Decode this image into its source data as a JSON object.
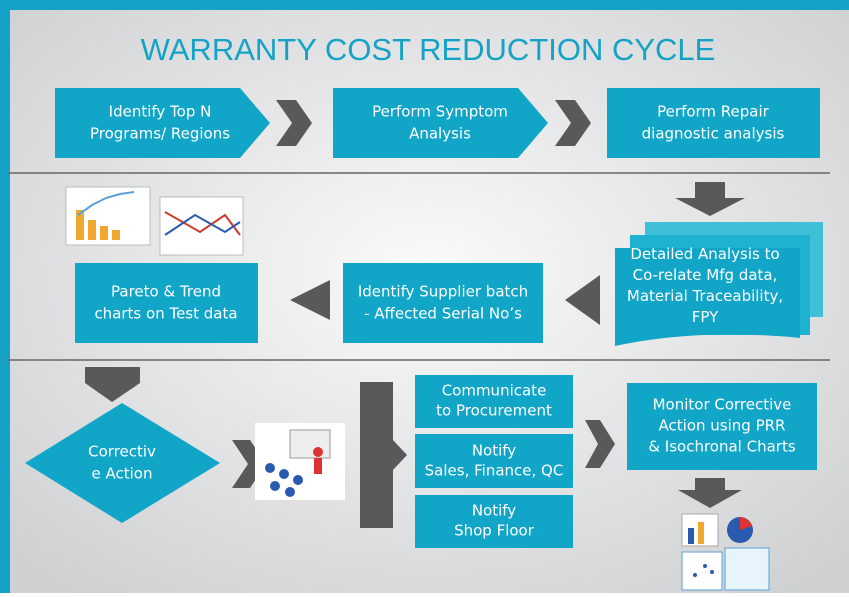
{
  "title": "WARRANTY COST REDUCTION CYCLE",
  "row1": [
    {
      "lines": [
        "Identify Top N",
        "Programs/ Regions"
      ]
    },
    {
      "lines": [
        "Perform Symptom",
        "Analysis"
      ]
    },
    {
      "lines": [
        "Perform Repair",
        "diagnostic analysis"
      ]
    }
  ],
  "row2": [
    {
      "lines": [
        "Detailed Analysis to",
        "Co-relate  Mfg data,",
        "Material Traceability,",
        "FPY"
      ]
    },
    {
      "lines": [
        "Identify Supplier batch",
        "- Affected Serial No’s"
      ]
    },
    {
      "lines": [
        "Pareto & Trend",
        "charts on Test data"
      ]
    }
  ],
  "row3": {
    "decision": {
      "lines": [
        "Correctiv",
        "e Action"
      ]
    },
    "actions": [
      {
        "lines": [
          "Communicate",
          "to  Procurement"
        ]
      },
      {
        "lines": [
          "Notify",
          "Sales, Finance, QC"
        ]
      },
      {
        "lines": [
          "Notify",
          "Shop Floor"
        ]
      }
    ],
    "monitor": {
      "lines": [
        "Monitor Corrective",
        "Action  using  PRR",
        "& Isochronal Charts"
      ]
    }
  }
}
